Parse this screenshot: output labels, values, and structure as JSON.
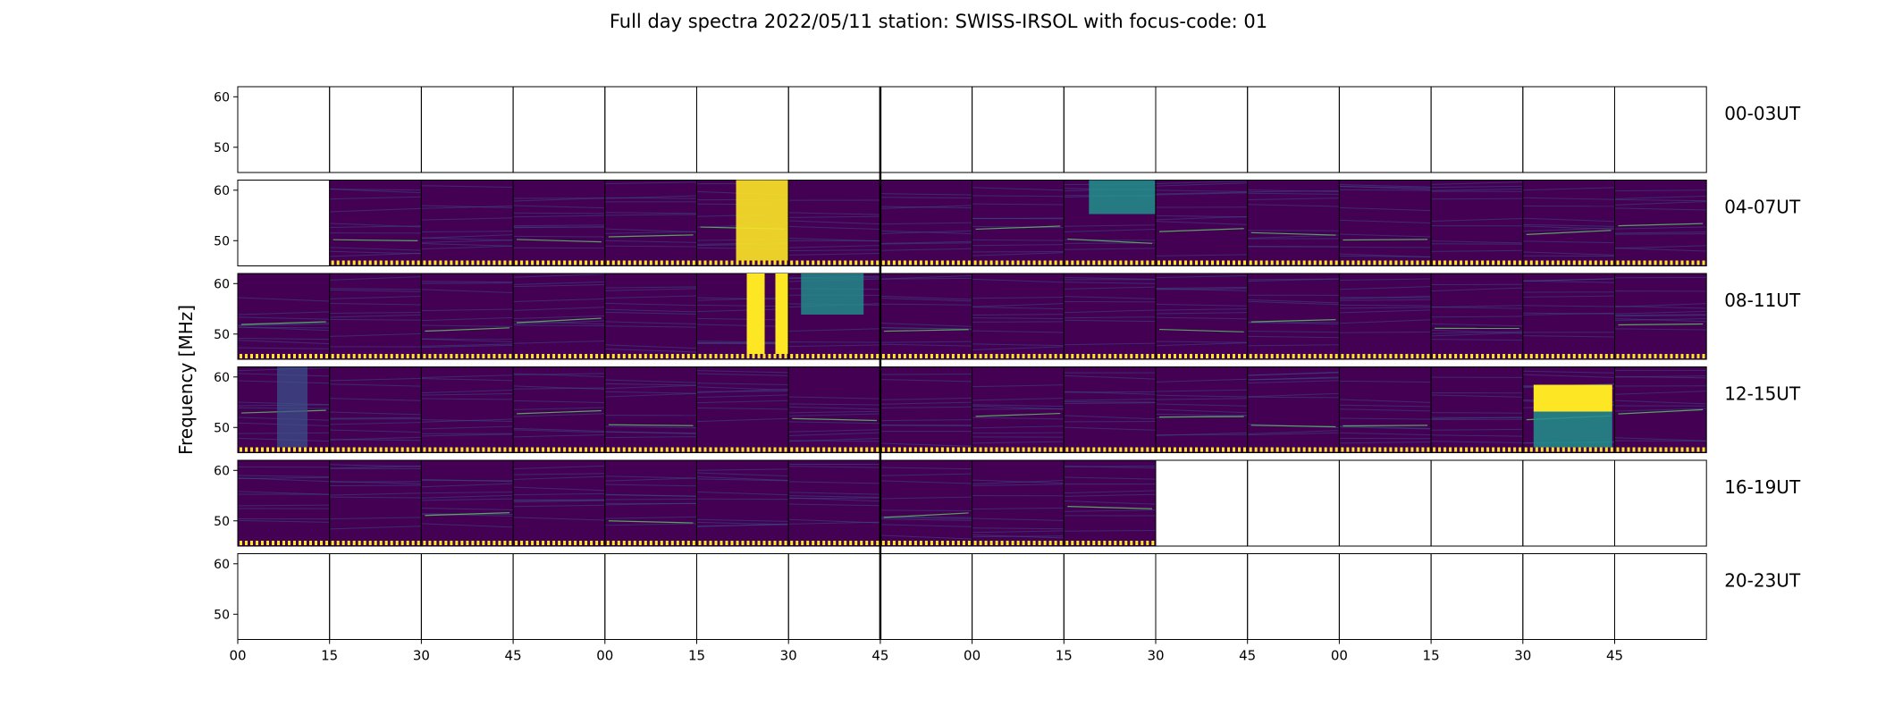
{
  "title": "Full day spectra 2022/05/11 station: SWISS-IRSOL with focus-code: 01",
  "chart_data": {
    "type": "heatmap",
    "title": "Full day spectra 2022/05/11 station: SWISS-IRSOL with focus-code: 01",
    "ylabel": "Frequency [MHz]",
    "xlabel": "",
    "yticks": [
      60,
      50
    ],
    "ylim": [
      45,
      62
    ],
    "xticks": [
      "00",
      "15",
      "30",
      "45",
      "00",
      "15",
      "30",
      "45",
      "00",
      "15",
      "30",
      "45",
      "00",
      "15",
      "30",
      "45"
    ],
    "colormap": "viridis",
    "panels_per_row": 16,
    "rows": [
      {
        "label": "00-03UT",
        "data": [
          0,
          0,
          0,
          0,
          0,
          0,
          0,
          0,
          0,
          0,
          0,
          0,
          0,
          0,
          0,
          0
        ]
      },
      {
        "label": "04-07UT",
        "data": [
          0,
          1,
          1,
          1,
          1,
          1,
          1,
          1,
          1,
          1,
          1,
          1,
          1,
          1,
          1,
          1
        ]
      },
      {
        "label": "08-11UT",
        "data": [
          1,
          1,
          1,
          1,
          1,
          1,
          1,
          1,
          1,
          1,
          1,
          1,
          1,
          1,
          1,
          1
        ]
      },
      {
        "label": "12-15UT",
        "data": [
          1,
          1,
          1,
          1,
          1,
          1,
          1,
          1,
          1,
          1,
          1,
          1,
          1,
          1,
          1,
          1
        ]
      },
      {
        "label": "16-19UT",
        "data": [
          1,
          1,
          1,
          1,
          1,
          1,
          1,
          1,
          1,
          1,
          0,
          0,
          0,
          0,
          0,
          0
        ]
      },
      {
        "label": "20-23UT",
        "data": [
          0,
          0,
          0,
          0,
          0,
          0,
          0,
          0,
          0,
          0,
          0,
          0,
          0,
          0,
          0,
          0
        ]
      }
    ],
    "colors": {
      "background": "#440154",
      "lowmid": "#3b528b",
      "mid": "#21918c",
      "high": "#5ec962",
      "peak": "#fde725"
    }
  }
}
